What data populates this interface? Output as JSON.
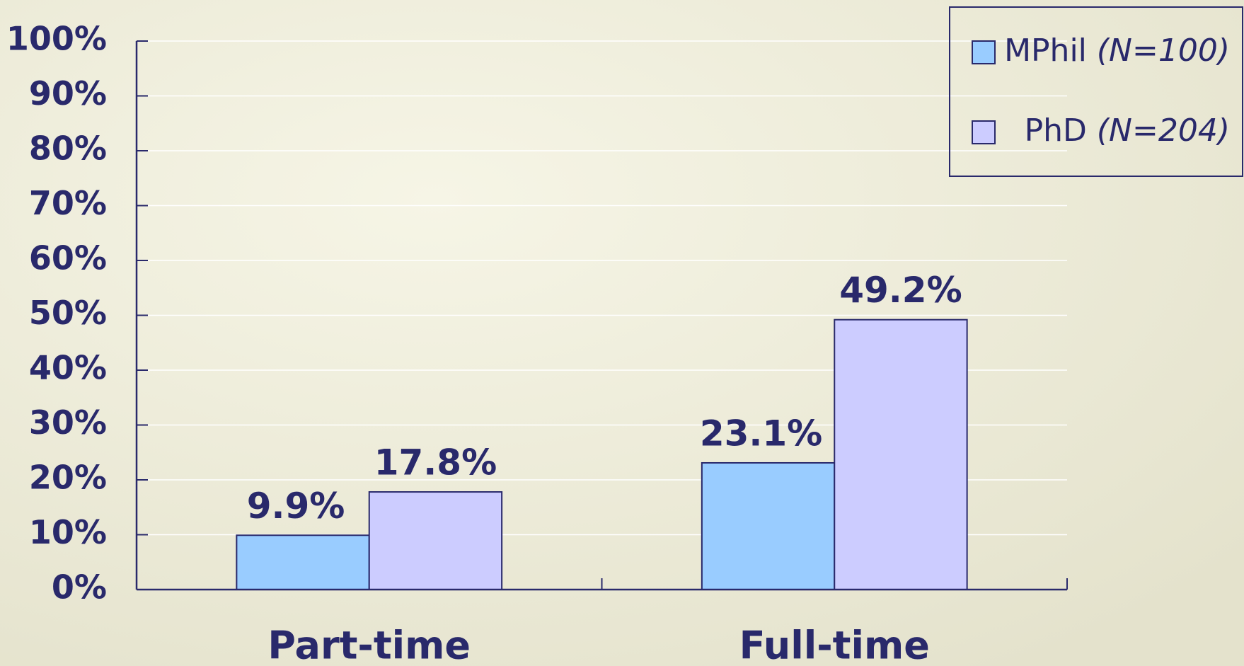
{
  "chart_data": {
    "type": "bar",
    "categories": [
      "Part-time",
      "Full-time"
    ],
    "series": [
      {
        "name": "MPhil (N=100)",
        "color": "#99ccff",
        "values": [
          9.9,
          23.1
        ],
        "value_labels": [
          "9.9%",
          "23.1%"
        ]
      },
      {
        "name": "PhD (N=204)",
        "color": "#ccccff",
        "values": [
          17.8,
          49.2
        ],
        "value_labels": [
          "17.8%",
          "49.2%"
        ]
      }
    ],
    "ylim": [
      0,
      100
    ],
    "yticks": [
      {
        "value": 0,
        "label": "0%"
      },
      {
        "value": 10,
        "label": "10%"
      },
      {
        "value": 20,
        "label": "20%"
      },
      {
        "value": 30,
        "label": "30%"
      },
      {
        "value": 40,
        "label": "40%"
      },
      {
        "value": 50,
        "label": "50%"
      },
      {
        "value": 60,
        "label": "60%"
      },
      {
        "value": 70,
        "label": "70%"
      },
      {
        "value": 80,
        "label": "80%"
      },
      {
        "value": 90,
        "label": "90%"
      },
      {
        "value": 100,
        "label": "100%"
      }
    ],
    "grid": true,
    "legend": "upper right"
  }
}
